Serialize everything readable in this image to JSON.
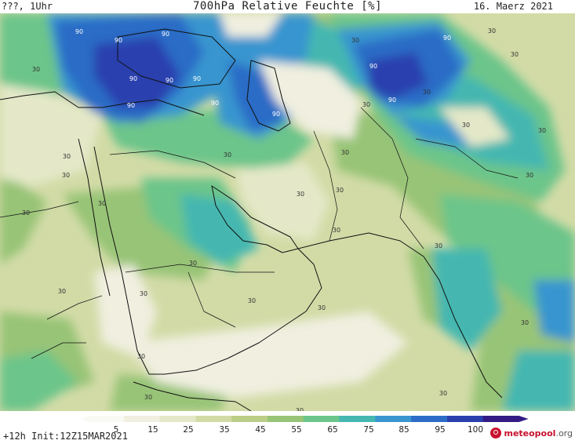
{
  "header": {
    "left": "???, 1Uhr",
    "title": "700hPa Relative Feuchte [%]",
    "date": "16. Maerz 2021"
  },
  "footer": {
    "init": "+12h Init:12Z15MAR2021"
  },
  "logo": {
    "name": "meteopool",
    "suffix": ".org"
  },
  "colorbar": {
    "ticks": [
      "5",
      "15",
      "25",
      "35",
      "45",
      "55",
      "65",
      "75",
      "85",
      "95",
      "100"
    ],
    "colors": [
      "#fafaf5",
      "#f0efe0",
      "#e4e8c8",
      "#d2dba6",
      "#bccd86",
      "#98c477",
      "#6cc58a",
      "#45b7b0",
      "#3895cf",
      "#2c6cc6",
      "#2a3fae",
      "#321b84"
    ]
  },
  "map": {
    "contour_label": "30",
    "high_label": "90"
  }
}
